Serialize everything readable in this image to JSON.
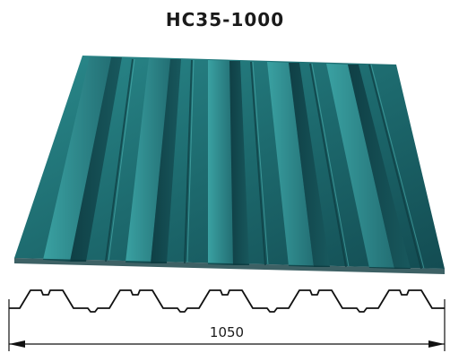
{
  "product": {
    "title": "НС35-1000",
    "color": "#1f6e72"
  },
  "profile": {
    "width_label": "1050"
  }
}
